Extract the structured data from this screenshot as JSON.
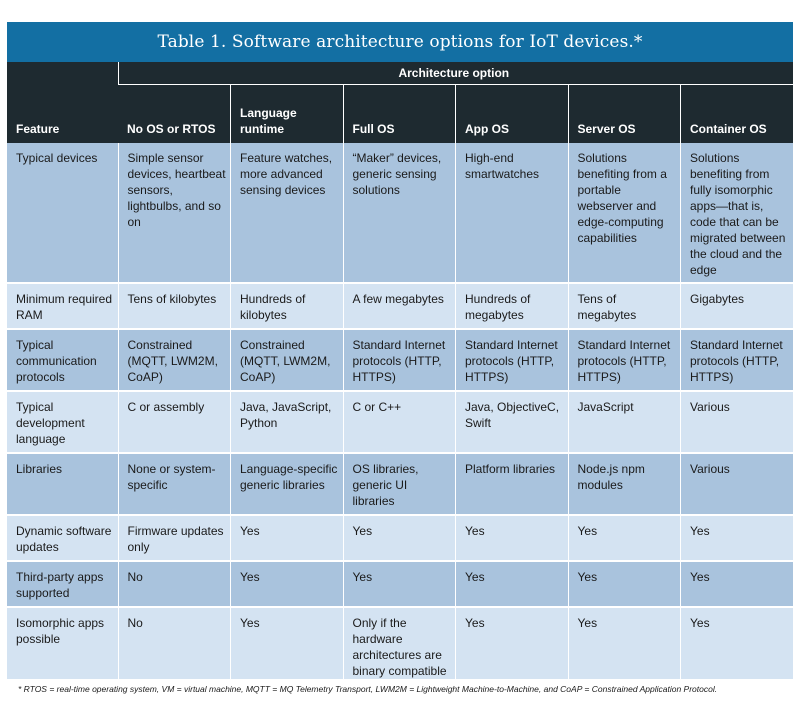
{
  "title": "Table 1. Software architecture options for IoT devices.*",
  "header": {
    "feature": "Feature",
    "architecture_option": "Architecture option",
    "options": [
      "No OS or RTOS",
      "Language runtime",
      "Full OS",
      "App OS",
      "Server OS",
      "Container OS"
    ]
  },
  "rows": [
    {
      "feature": "Typical devices",
      "cells": [
        "Simple sensor devices, heartbeat sensors, lightbulbs, and so on",
        "Feature watches, more advanced sensing devices",
        "“Maker” devices, generic sensing solutions",
        "High-end smartwatches",
        "Solutions benefiting from a portable webserver and edge-computing capabilities",
        "Solutions benefiting from fully isomorphic apps—that is, code that can be migrated between the cloud and the edge"
      ]
    },
    {
      "feature": "Minimum required RAM",
      "cells": [
        "Tens of kilobytes",
        "Hundreds of kilobytes",
        "A few megabytes",
        "Hundreds of megabytes",
        "Tens of megabytes",
        "Gigabytes"
      ]
    },
    {
      "feature": "Typical communication protocols",
      "cells": [
        "Constrained (MQTT, LWM2M, CoAP)",
        "Constrained (MQTT, LWM2M, CoAP)",
        "Standard Internet protocols (HTTP, HTTPS)",
        "Standard Internet protocols (HTTP, HTTPS)",
        "Standard Internet protocols (HTTP, HTTPS)",
        "Standard Internet protocols (HTTP, HTTPS)"
      ]
    },
    {
      "feature": "Typical development language",
      "cells": [
        "C or assembly",
        "Java, JavaScript, Python",
        "C or C++",
        "Java, ObjectiveC, Swift",
        "JavaScript",
        "Various"
      ]
    },
    {
      "feature": "Libraries",
      "cells": [
        "None or system-specific",
        "Language-specific generic libraries",
        "OS libraries, generic UI libraries",
        "Platform libraries",
        "Node.js npm modules",
        "Various"
      ]
    },
    {
      "feature": "Dynamic software updates",
      "cells": [
        "Firmware updates only",
        "Yes",
        "Yes",
        "Yes",
        "Yes",
        "Yes"
      ]
    },
    {
      "feature": "Third-party apps supported",
      "cells": [
        "No",
        "Yes",
        "Yes",
        "Yes",
        "Yes",
        "Yes"
      ]
    },
    {
      "feature": "Isomorphic apps possible",
      "cells": [
        "No",
        "Yes",
        "Only if the hardware architectures are binary compatible",
        "Yes",
        "Yes",
        "Yes"
      ]
    }
  ],
  "footnote": "* RTOS = real-time operating system, VM = virtual machine, MQTT = MQ Telemetry Transport, LWM2M = Lightweight Machine-to-Machine, and CoAP = Constrained Application Protocol.",
  "colors": {
    "title_bar": "#136fa3",
    "header_bg": "#1e2a30",
    "row_dark": "#a9c3dd",
    "row_light": "#d4e3f2"
  }
}
